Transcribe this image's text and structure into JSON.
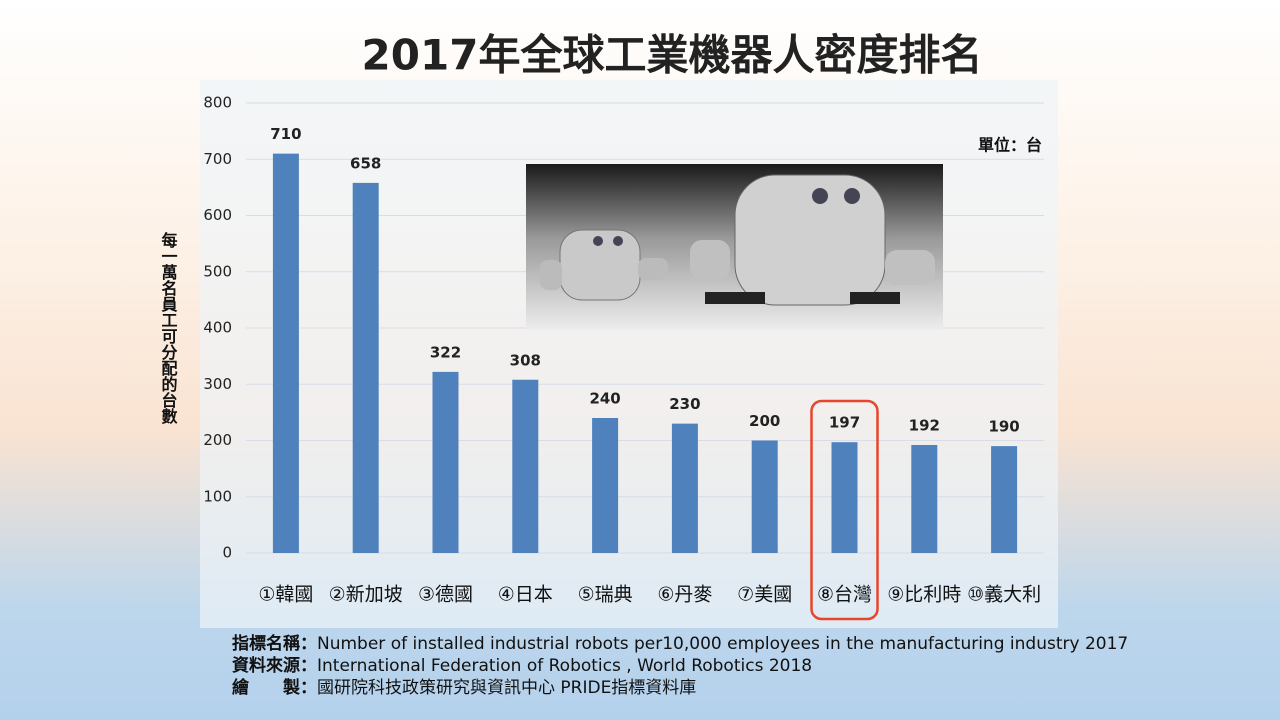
{
  "chart_data": {
    "type": "bar",
    "title": "2017年全球工業機器人密度排名",
    "y_label": "每一萬名員工可分配的台數",
    "unit_note": "單位：台",
    "categories": [
      "①韓國",
      "②新加坡",
      "③德國",
      "④日本",
      "⑤瑞典",
      "⑥丹麥",
      "⑦美國",
      "⑧台灣",
      "⑨比利時",
      "⑩義大利"
    ],
    "values": [
      710,
      658,
      322,
      308,
      240,
      230,
      200,
      197,
      192,
      190
    ],
    "color": "#4f81bd",
    "ylim": [
      0,
      800
    ],
    "yticks": [
      0,
      100,
      200,
      300,
      400,
      500,
      600,
      700,
      800
    ],
    "grid": true,
    "highlight": 7,
    "highlight_color": "#e8452a"
  },
  "notes": [
    {
      "label": "指標名稱：",
      "text": "Number of installed industrial robots per10,000 employees in the manufacturing industry 2017"
    },
    {
      "label": "資料來源：",
      "text": "International Federation of Robotics , World  Robotics 2018"
    },
    {
      "label": "繪　　製：",
      "text": "國研院科技政策研究與資訊中心 PRIDE指標資料庫"
    }
  ]
}
